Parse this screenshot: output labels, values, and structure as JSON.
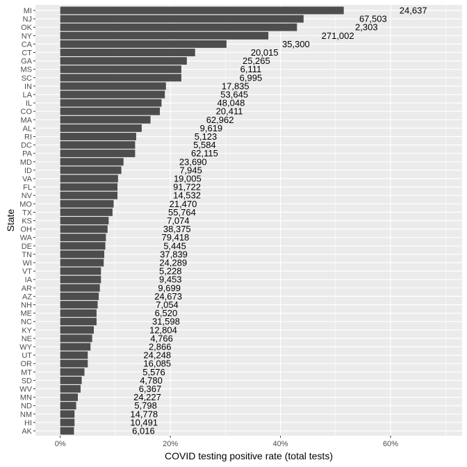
{
  "chart_data": {
    "type": "bar",
    "orientation": "horizontal",
    "xlabel": "COVID testing positive rate  (total tests)",
    "ylabel": "State",
    "xlim": [
      -0.045,
      0.73
    ],
    "x_ticks": [
      0,
      0.2,
      0.4,
      0.6
    ],
    "x_tick_labels": [
      "0%",
      "20%",
      "40%",
      "60%"
    ],
    "grid": true,
    "colors": {
      "bar": "#4d4d4d",
      "panel": "#ebebeb",
      "grid": "#ffffff"
    },
    "bars": [
      {
        "state": "MI",
        "rate": 0.515,
        "tests": "24,637"
      },
      {
        "state": "NJ",
        "rate": 0.442,
        "tests": "67,503"
      },
      {
        "state": "OK",
        "rate": 0.43,
        "tests": "2,303"
      },
      {
        "state": "NY",
        "rate": 0.378,
        "tests": "271,002"
      },
      {
        "state": "CA",
        "rate": 0.302,
        "tests": "35,300"
      },
      {
        "state": "CT",
        "rate": 0.245,
        "tests": "20,015"
      },
      {
        "state": "GA",
        "rate": 0.23,
        "tests": "25,265"
      },
      {
        "state": "MS",
        "rate": 0.22,
        "tests": "6,111"
      },
      {
        "state": "SC",
        "rate": 0.22,
        "tests": "6,995"
      },
      {
        "state": "IN",
        "rate": 0.192,
        "tests": "17,835"
      },
      {
        "state": "LA",
        "rate": 0.19,
        "tests": "53,645"
      },
      {
        "state": "IL",
        "rate": 0.184,
        "tests": "48,048"
      },
      {
        "state": "CO",
        "rate": 0.181,
        "tests": "20,411"
      },
      {
        "state": "MA",
        "rate": 0.164,
        "tests": "62,962"
      },
      {
        "state": "AL",
        "rate": 0.148,
        "tests": "9,619"
      },
      {
        "state": "RI",
        "rate": 0.138,
        "tests": "5,123"
      },
      {
        "state": "DC",
        "rate": 0.136,
        "tests": "5,584"
      },
      {
        "state": "PA",
        "rate": 0.136,
        "tests": "62,115"
      },
      {
        "state": "MD",
        "rate": 0.115,
        "tests": "23,690"
      },
      {
        "state": "ID",
        "rate": 0.111,
        "tests": "7,945"
      },
      {
        "state": "VA",
        "rate": 0.105,
        "tests": "19,005"
      },
      {
        "state": "FL",
        "rate": 0.104,
        "tests": "91,722"
      },
      {
        "state": "NV",
        "rate": 0.104,
        "tests": "14,532"
      },
      {
        "state": "MO",
        "rate": 0.097,
        "tests": "21,470"
      },
      {
        "state": "TX",
        "rate": 0.095,
        "tests": "55,764"
      },
      {
        "state": "KS",
        "rate": 0.088,
        "tests": "7,074"
      },
      {
        "state": "OH",
        "rate": 0.086,
        "tests": "38,375"
      },
      {
        "state": "WA",
        "rate": 0.083,
        "tests": "79,418"
      },
      {
        "state": "DE",
        "rate": 0.082,
        "tests": "5,445"
      },
      {
        "state": "TN",
        "rate": 0.08,
        "tests": "37,839"
      },
      {
        "state": "WI",
        "rate": 0.079,
        "tests": "24,289"
      },
      {
        "state": "VT",
        "rate": 0.074,
        "tests": "5,228"
      },
      {
        "state": "IA",
        "rate": 0.074,
        "tests": "9,453"
      },
      {
        "state": "AR",
        "rate": 0.072,
        "tests": "9,699"
      },
      {
        "state": "AZ",
        "rate": 0.07,
        "tests": "24,673"
      },
      {
        "state": "NH",
        "rate": 0.068,
        "tests": "7,054"
      },
      {
        "state": "ME",
        "rate": 0.066,
        "tests": "6,520"
      },
      {
        "state": "NC",
        "rate": 0.066,
        "tests": "31,598"
      },
      {
        "state": "KY",
        "rate": 0.061,
        "tests": "12,804"
      },
      {
        "state": "NE",
        "rate": 0.058,
        "tests": "4,766"
      },
      {
        "state": "WY",
        "rate": 0.055,
        "tests": "2,866"
      },
      {
        "state": "UT",
        "rate": 0.05,
        "tests": "24,248"
      },
      {
        "state": "OR",
        "rate": 0.05,
        "tests": "16,085"
      },
      {
        "state": "MT",
        "rate": 0.044,
        "tests": "5,576"
      },
      {
        "state": "SD",
        "rate": 0.039,
        "tests": "4,780"
      },
      {
        "state": "WV",
        "rate": 0.037,
        "tests": "6,367"
      },
      {
        "state": "MN",
        "rate": 0.032,
        "tests": "24,227"
      },
      {
        "state": "ND",
        "rate": 0.029,
        "tests": "5,798"
      },
      {
        "state": "NM",
        "rate": 0.026,
        "tests": "14,778"
      },
      {
        "state": "HI",
        "rate": 0.026,
        "tests": "10,491"
      },
      {
        "state": "AK",
        "rate": 0.025,
        "tests": "6,016"
      }
    ]
  }
}
